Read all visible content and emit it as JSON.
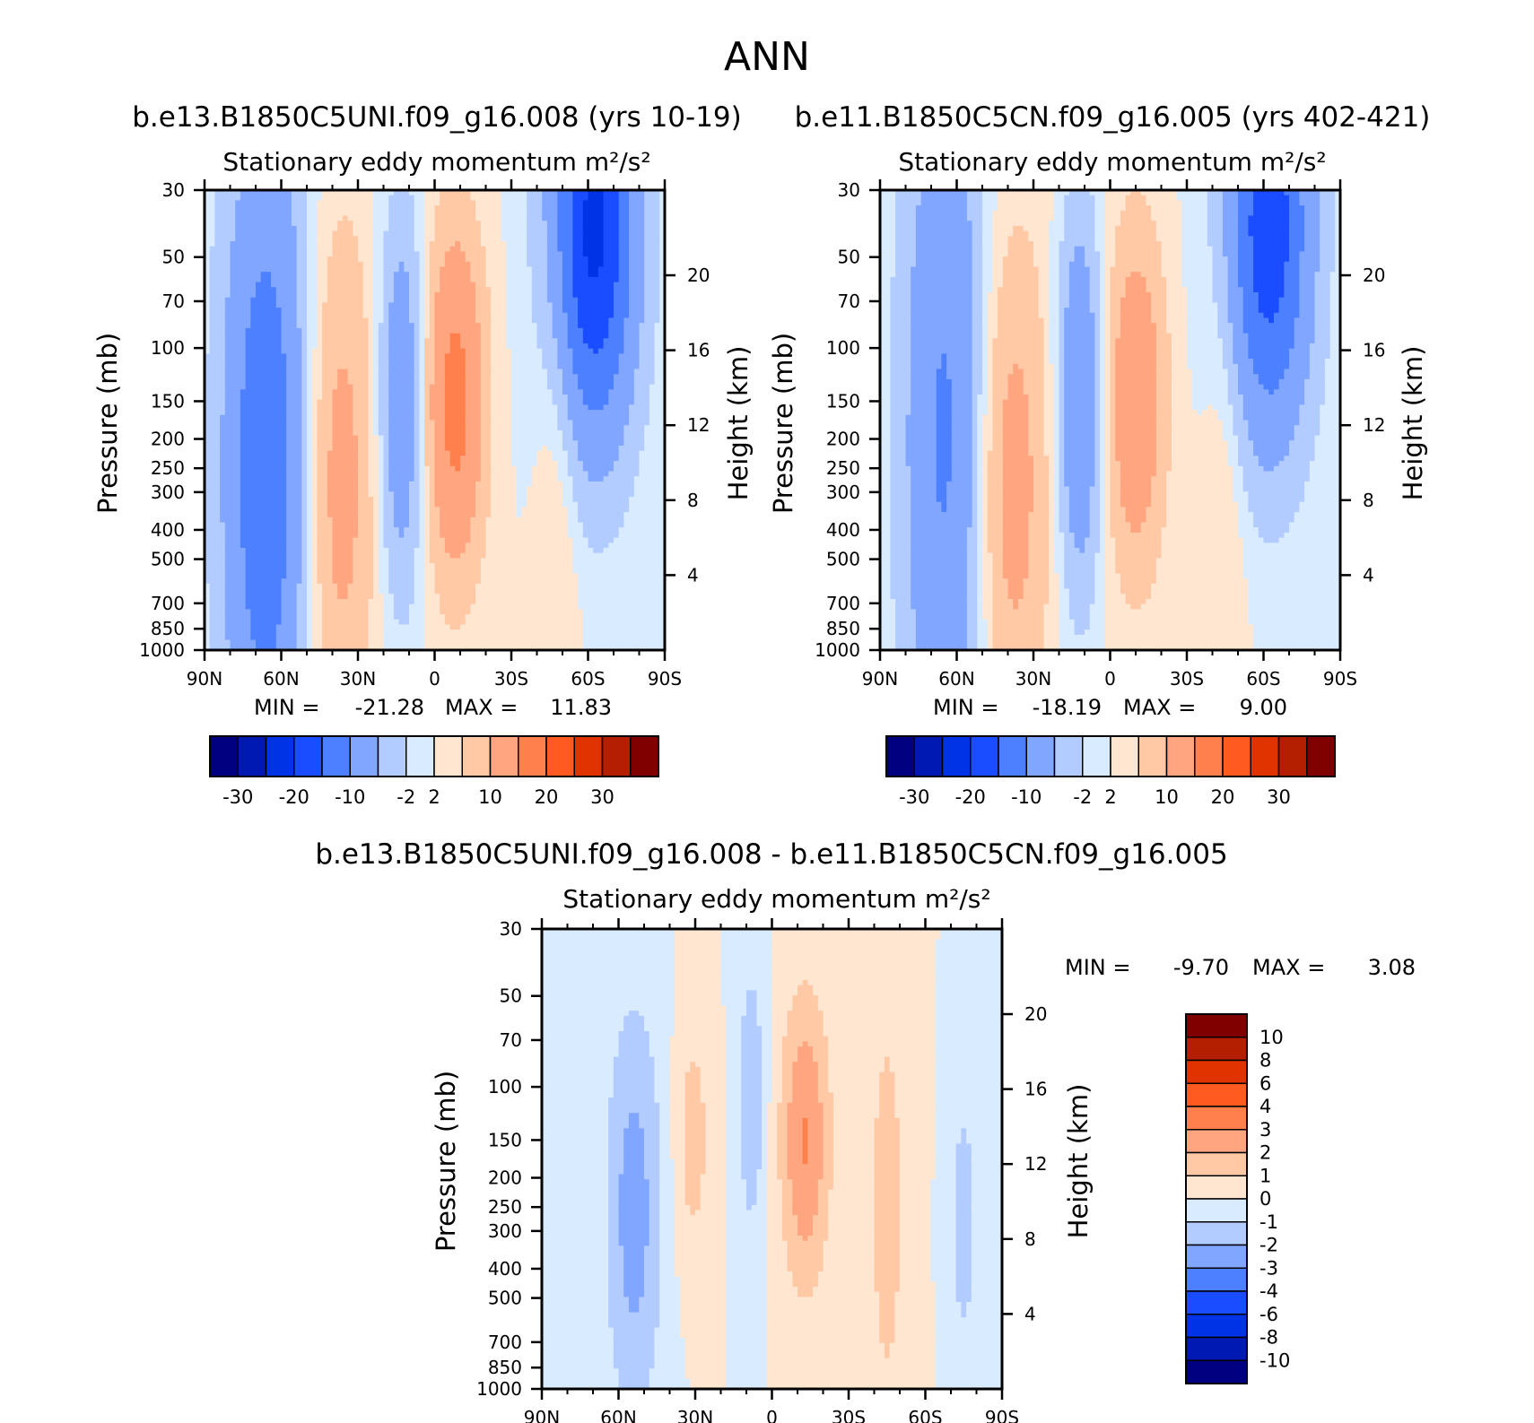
{
  "figure": {
    "title": "ANN"
  },
  "colors": {
    "panel_palette": [
      "#000080",
      "#0019b3",
      "#0033e6",
      "#1a4dff",
      "#4d80ff",
      "#80a6ff",
      "#b3ccff",
      "#d9ebff",
      "#ffe6d1",
      "#ffc9a6",
      "#ffa680",
      "#ff804d",
      "#ff5a1f",
      "#e03300",
      "#b31f00",
      "#800000"
    ],
    "diff_palette_bottom_to_top": [
      "#000080",
      "#0019b3",
      "#0033e6",
      "#1a4dff",
      "#4d80ff",
      "#80a6ff",
      "#b3ccff",
      "#d9ebff",
      "#ffe6d1",
      "#ffc9a6",
      "#ffa680",
      "#ff804d",
      "#ff5a1f",
      "#e03300",
      "#b31f00",
      "#800000"
    ],
    "grad_neg": "#4d80ff",
    "grad_pos": "#ff804d"
  },
  "chart_data": [
    {
      "type": "heatmap",
      "id": "case1",
      "case_title": "b.e13.B1850C5UNI.f09_g16.008 (yrs 10-19)",
      "title": "Stationary eddy momentum  m²/s²",
      "xlabel": "",
      "ylabel": "Pressure (mb)",
      "ylabel_right": "Height (km)",
      "x_ticks": [
        "90N",
        "60N",
        "30N",
        "0",
        "30S",
        "60S",
        "90S"
      ],
      "y_ticks": [
        30,
        50,
        70,
        100,
        150,
        200,
        250,
        300,
        400,
        500,
        700,
        850,
        1000
      ],
      "y_right_ticks": [
        20,
        16,
        12,
        8,
        4
      ],
      "ylim": [
        1000,
        30
      ],
      "xlim": [
        90,
        -90
      ],
      "min": -21.28,
      "max": 11.83,
      "min_label": "MIN =",
      "min_value": "-21.28",
      "max_label": "MAX =",
      "max_value": "11.83",
      "contour_levels": [
        -30,
        -25,
        -20,
        -15,
        -10,
        -5,
        -2,
        0,
        2,
        5,
        10,
        15,
        20,
        25,
        30
      ],
      "colorbar_labels": [
        "-30",
        "-20",
        "-10",
        "-2",
        "2",
        "10",
        "20",
        "30"
      ],
      "features": [
        {
          "lat": 66,
          "p": 250,
          "value": -14,
          "sx": 12,
          "sy": 0.8
        },
        {
          "lat": 38,
          "p": 280,
          "value": 7,
          "sx": 10,
          "sy": 0.6
        },
        {
          "lat": -8,
          "p": 150,
          "value": 11.8,
          "sx": 8,
          "sy": 0.4
        },
        {
          "lat": 13,
          "p": 150,
          "value": -9,
          "sx": 6,
          "sy": 0.45
        },
        {
          "lat": -62,
          "p": 40,
          "value": -21.3,
          "sx": 12,
          "sy": 0.5
        },
        {
          "lat": -48,
          "p": 250,
          "value": 3,
          "sx": 6,
          "sy": 0.7
        }
      ]
    },
    {
      "type": "heatmap",
      "id": "case2",
      "case_title": "b.e11.B1850C5CN.f09_g16.005 (yrs 402-421)",
      "title": "Stationary eddy momentum  m²/s²",
      "xlabel": "",
      "ylabel": "Pressure (mb)",
      "ylabel_right": "Height (km)",
      "x_ticks": [
        "90N",
        "60N",
        "30N",
        "0",
        "30S",
        "60S",
        "90S"
      ],
      "y_ticks": [
        30,
        50,
        70,
        100,
        150,
        200,
        250,
        300,
        400,
        500,
        700,
        850,
        1000
      ],
      "y_right_ticks": [
        20,
        16,
        12,
        8,
        4
      ],
      "ylim": [
        1000,
        30
      ],
      "xlim": [
        90,
        -90
      ],
      "min": -18.19,
      "max": 9.0,
      "min_label": "MIN =",
      "min_value": "-18.19",
      "max_label": "MAX =",
      "max_value": "9.00",
      "contour_levels": [
        -30,
        -25,
        -20,
        -15,
        -10,
        -5,
        -2,
        0,
        2,
        5,
        10,
        15,
        20,
        25,
        30
      ],
      "colorbar_labels": [
        "-30",
        "-20",
        "-10",
        "-2",
        "2",
        "10",
        "20",
        "30"
      ],
      "features": [
        {
          "lat": 64,
          "p": 200,
          "value": -11,
          "sx": 12,
          "sy": 0.9
        },
        {
          "lat": 40,
          "p": 280,
          "value": 7.5,
          "sx": 11,
          "sy": 0.6
        },
        {
          "lat": -10,
          "p": 150,
          "value": 9,
          "sx": 8,
          "sy": 0.4
        },
        {
          "lat": 12,
          "p": 150,
          "value": -10,
          "sx": 6,
          "sy": 0.45
        },
        {
          "lat": -62,
          "p": 40,
          "value": -18.2,
          "sx": 12,
          "sy": 0.5
        },
        {
          "lat": -45,
          "p": 250,
          "value": 2.5,
          "sx": 6,
          "sy": 0.7
        }
      ]
    },
    {
      "type": "heatmap",
      "id": "difference",
      "case_title": "b.e13.B1850C5UNI.f09_g16.008 - b.e11.B1850C5CN.f09_g16.005",
      "title": "Stationary eddy momentum  m²/s²",
      "xlabel": "",
      "ylabel": "Pressure (mb)",
      "ylabel_right": "Height (km)",
      "x_ticks": [
        "90N",
        "60N",
        "30N",
        "0",
        "30S",
        "60S",
        "90S"
      ],
      "y_ticks": [
        30,
        50,
        70,
        100,
        150,
        200,
        250,
        300,
        400,
        500,
        700,
        850,
        1000
      ],
      "y_right_ticks": [
        20,
        16,
        12,
        8,
        4
      ],
      "ylim": [
        1000,
        30
      ],
      "xlim": [
        90,
        -90
      ],
      "min": -9.7,
      "max": 3.08,
      "min_label": "MIN =",
      "min_value": "-9.70",
      "max_label": "MAX =",
      "max_value": "3.08",
      "contour_levels": [
        -10,
        -8,
        -6,
        -4,
        -3,
        -2,
        -1,
        0,
        1,
        2,
        3,
        4,
        6,
        8,
        10
      ],
      "colorbar_labels": [
        "10",
        "8",
        "6",
        "4",
        "3",
        "2",
        "1",
        "0",
        "-1",
        "-2",
        "-3",
        "-4",
        "-6",
        "-8",
        "-10"
      ],
      "features": [
        {
          "lat": 54,
          "p": 260,
          "value": -2.5,
          "sx": 8,
          "sy": 0.5
        },
        {
          "lat": 31,
          "p": 150,
          "value": 1.5,
          "sx": 5,
          "sy": 0.3
        },
        {
          "lat": 8,
          "p": 110,
          "value": -1.8,
          "sx": 4,
          "sy": 0.35
        },
        {
          "lat": -13,
          "p": 150,
          "value": 3.08,
          "sx": 7,
          "sy": 0.35
        },
        {
          "lat": -45,
          "p": 250,
          "value": 1.4,
          "sx": 6,
          "sy": 0.6
        },
        {
          "lat": -75,
          "p": 280,
          "value": -1.5,
          "sx": 4,
          "sy": 0.35
        }
      ]
    }
  ]
}
